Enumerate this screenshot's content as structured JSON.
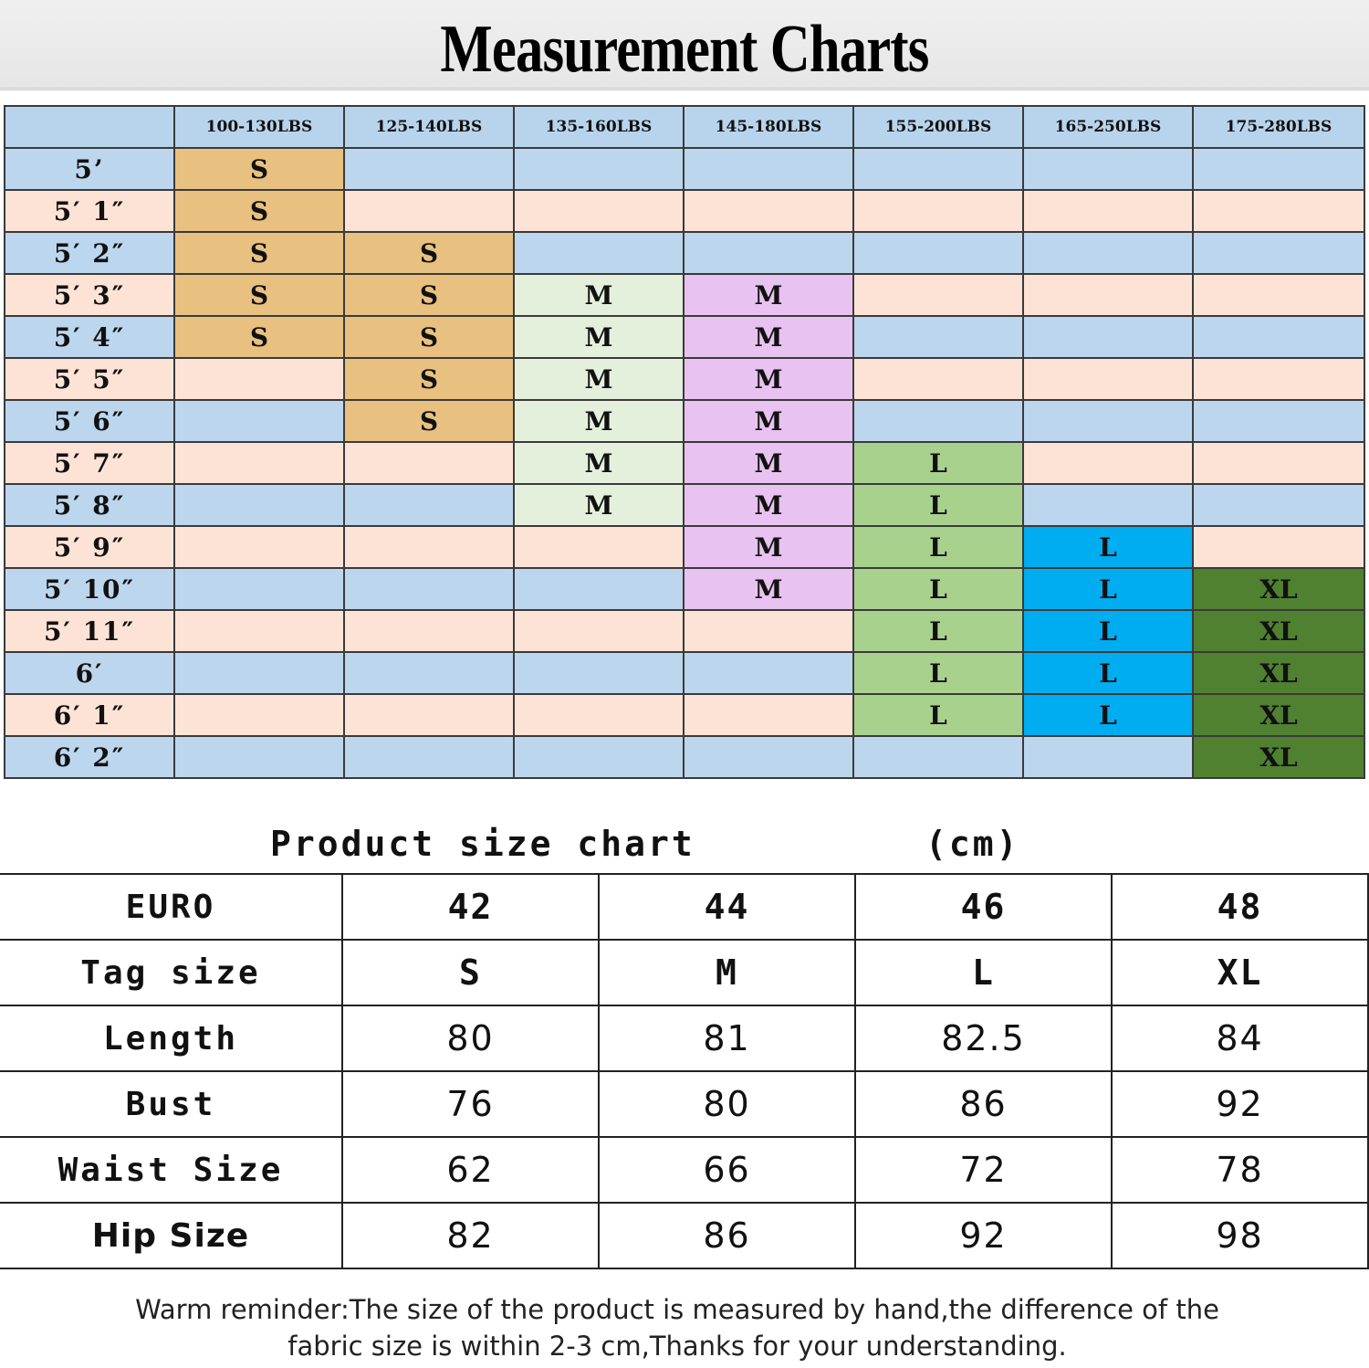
{
  "title": "Measurement Charts",
  "height_chart": {
    "weights": [
      "100-130LBS",
      "125-140LBS",
      "135-160LBS",
      "145-180LBS",
      "155-200LBS",
      "165-250LBS",
      "175-280LBS"
    ],
    "rows": [
      {
        "height": "5’",
        "sizes": [
          "S",
          "",
          "",
          "",
          "",
          "",
          ""
        ]
      },
      {
        "height": "5′ 1″",
        "sizes": [
          "S",
          "",
          "",
          "",
          "",
          "",
          ""
        ]
      },
      {
        "height": "5′ 2″",
        "sizes": [
          "S",
          "S",
          "",
          "",
          "",
          "",
          ""
        ]
      },
      {
        "height": "5′ 3″",
        "sizes": [
          "S",
          "S",
          "M",
          "M",
          "",
          "",
          ""
        ]
      },
      {
        "height": "5′ 4″",
        "sizes": [
          "S",
          "S",
          "M",
          "M",
          "",
          "",
          ""
        ]
      },
      {
        "height": "5′ 5″",
        "sizes": [
          "",
          "S",
          "M",
          "M",
          "",
          "",
          ""
        ]
      },
      {
        "height": "5′ 6″",
        "sizes": [
          "",
          "S",
          "M",
          "M",
          "",
          "",
          ""
        ]
      },
      {
        "height": "5′ 7″",
        "sizes": [
          "",
          "",
          "M",
          "M",
          "L",
          "",
          ""
        ]
      },
      {
        "height": "5′ 8″",
        "sizes": [
          "",
          "",
          "M",
          "M",
          "L",
          "",
          ""
        ]
      },
      {
        "height": "5′ 9″",
        "sizes": [
          "",
          "",
          "",
          "M",
          "L",
          "L",
          ""
        ]
      },
      {
        "height": "5′ 10″",
        "sizes": [
          "",
          "",
          "",
          "M",
          "L",
          "L",
          "XL"
        ]
      },
      {
        "height": "5′ 11″",
        "sizes": [
          "",
          "",
          "",
          "",
          "L",
          "L",
          "XL"
        ]
      },
      {
        "height": "6′",
        "sizes": [
          "",
          "",
          "",
          "",
          "L",
          "L",
          "XL"
        ]
      },
      {
        "height": "6′ 1″",
        "sizes": [
          "",
          "",
          "",
          "",
          "L",
          "L",
          "XL"
        ]
      },
      {
        "height": "6′ 2″",
        "sizes": [
          "",
          "",
          "",
          "",
          "",
          "",
          "XL"
        ]
      }
    ],
    "colors": {
      "row_blue": "#bcd6ee",
      "row_pink": "#fde3d5",
      "S": "#e8c180",
      "M_col3": "#e4f0dc",
      "M_col4": "#e8c2f0",
      "L_col5": "#a9d18e",
      "L_col6": "#00adf0",
      "XL": "#4f8130"
    }
  },
  "product_chart": {
    "title": "Product size chart",
    "unit": "(cm)",
    "rows": [
      {
        "label": "EURO",
        "values": [
          "42",
          "44",
          "46",
          "48"
        ]
      },
      {
        "label": "Tag size",
        "values": [
          "S",
          "M",
          "L",
          "XL"
        ]
      },
      {
        "label": "Length",
        "values": [
          "80",
          "81",
          "82.5",
          "84"
        ]
      },
      {
        "label": "Bust",
        "values": [
          "76",
          "80",
          "86",
          "92"
        ]
      },
      {
        "label": "Waist Size",
        "values": [
          "62",
          "66",
          "72",
          "78"
        ]
      },
      {
        "label": "Hip Size",
        "values": [
          "82",
          "86",
          "92",
          "98"
        ]
      }
    ]
  },
  "reminder": {
    "line1": "Warm reminder:The size of the product is measured by hand,the difference of the",
    "line2": "fabric size is within 2-3 cm,Thanks for your understanding."
  }
}
